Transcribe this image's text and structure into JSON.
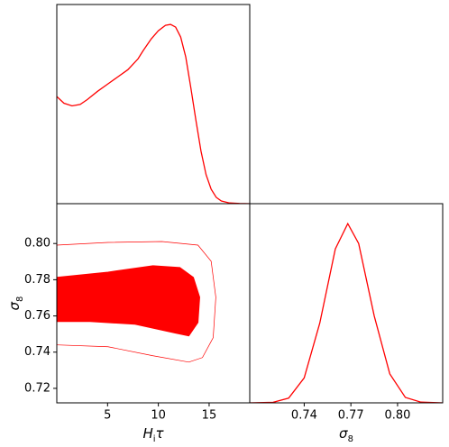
{
  "chart_data": [
    {
      "type": "line",
      "color": "#ff0000",
      "x": [
        0,
        0.7,
        1.5,
        2.3,
        3,
        4,
        5,
        6,
        7,
        8,
        8.5,
        9.3,
        10,
        10.7,
        11.2,
        11.7,
        12.2,
        12.7,
        13.2,
        13.7,
        14.2,
        14.7,
        15.2,
        15.7,
        16.2,
        17,
        18,
        19
      ],
      "values": [
        0.592,
        0.555,
        0.54,
        0.548,
        0.575,
        0.62,
        0.66,
        0.7,
        0.74,
        0.8,
        0.845,
        0.91,
        0.955,
        0.985,
        0.99,
        0.975,
        0.92,
        0.81,
        0.64,
        0.46,
        0.29,
        0.16,
        0.08,
        0.035,
        0.015,
        0.004,
        0.001,
        0
      ],
      "xlim": [
        0,
        19
      ],
      "ylim": [
        0,
        1.1
      ]
    },
    {
      "type": "contour",
      "x_label": {
        "base": "H",
        "sub": "i",
        "rest": "τ"
      },
      "y_label": {
        "base": "σ",
        "sub": "8"
      },
      "series": [
        {
          "color": "#ff0000",
          "fill": true,
          "x": [
            0,
            5.04,
            9.47,
            12.12,
            13.45,
            14.07,
            13.9,
            13.0,
            11.7,
            7.7,
            3.27,
            0
          ],
          "values": [
            0.7813,
            0.7842,
            0.7877,
            0.7867,
            0.7813,
            0.7703,
            0.7564,
            0.749,
            0.7505,
            0.7554,
            0.7569,
            0.7569
          ]
        },
        {
          "color": "#ff0000",
          "fill": false,
          "x": [
            0,
            5.04,
            10.35,
            13.9,
            15.2,
            15.66,
            15.4,
            14.34,
            13.0,
            9.47,
            5.04,
            0
          ],
          "values": [
            0.7991,
            0.8006,
            0.8011,
            0.7991,
            0.7902,
            0.7703,
            0.748,
            0.737,
            0.7345,
            0.738,
            0.743,
            0.744
          ]
        }
      ],
      "xlim": [
        0,
        19
      ],
      "ylim": [
        0.712,
        0.822
      ],
      "xticks": [
        5,
        10,
        15
      ],
      "yticks": [
        0.72,
        0.74,
        0.76,
        0.78,
        {
          "value": 0.8,
          "label": "0.80"
        }
      ]
    },
    {
      "type": "line",
      "color": "#ff0000",
      "x_label": {
        "base": "σ",
        "sub": "8"
      },
      "x": [
        0.705,
        0.72,
        0.73,
        0.74,
        0.75,
        0.76,
        0.768,
        0.775,
        0.785,
        0.795,
        0.805,
        0.815,
        0.829
      ],
      "values": [
        0,
        0.003,
        0.026,
        0.138,
        0.44,
        0.85,
        0.99,
        0.88,
        0.48,
        0.16,
        0.03,
        0.004,
        0
      ],
      "xlim": [
        0.705,
        0.829
      ],
      "ylim": [
        0,
        1.1
      ],
      "xticks": [
        0.74,
        0.77,
        {
          "value": 0.8,
          "label": "0.80"
        }
      ]
    }
  ]
}
